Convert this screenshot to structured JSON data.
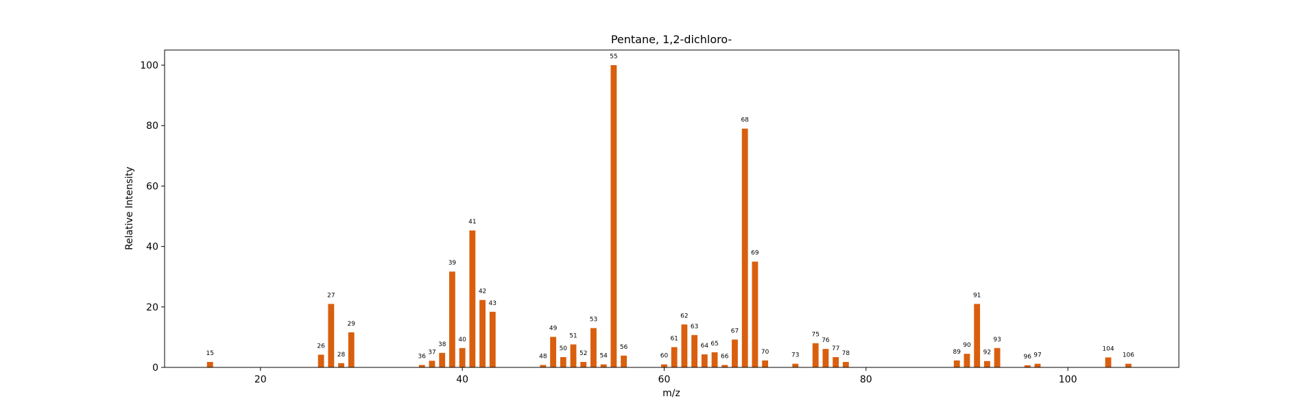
{
  "chart_data": {
    "type": "bar",
    "title": "Pentane, 1,2-dichloro-",
    "xlabel": "m/z",
    "ylabel": "Relative Intensity",
    "xlim": [
      10.5,
      111
    ],
    "ylim": [
      0,
      105
    ],
    "x_ticks": [
      20,
      40,
      60,
      80,
      100
    ],
    "y_ticks": [
      0,
      20,
      40,
      60,
      80,
      100
    ],
    "bar_color": "#d95f0e",
    "grid": false,
    "legend": "none",
    "x": [
      15,
      26,
      27,
      28,
      29,
      36,
      37,
      38,
      39,
      40,
      41,
      42,
      43,
      48,
      49,
      50,
      51,
      52,
      53,
      54,
      55,
      56,
      60,
      61,
      62,
      63,
      64,
      65,
      66,
      67,
      68,
      69,
      70,
      73,
      75,
      76,
      77,
      78,
      89,
      90,
      91,
      92,
      93,
      96,
      97,
      104,
      106
    ],
    "values": [
      1.8,
      4.2,
      21.0,
      1.4,
      11.6,
      0.8,
      2.2,
      4.8,
      31.7,
      6.4,
      45.3,
      22.3,
      18.4,
      0.8,
      10.1,
      3.4,
      7.6,
      1.8,
      13.0,
      1.0,
      100.0,
      3.9,
      1.0,
      6.7,
      14.2,
      10.7,
      4.3,
      5.0,
      0.8,
      9.2,
      79.0,
      35.0,
      2.3,
      1.2,
      8.0,
      6.1,
      3.4,
      1.8,
      2.3,
      4.5,
      21.0,
      2.1,
      6.4,
      0.7,
      1.2,
      3.3,
      1.2
    ]
  }
}
